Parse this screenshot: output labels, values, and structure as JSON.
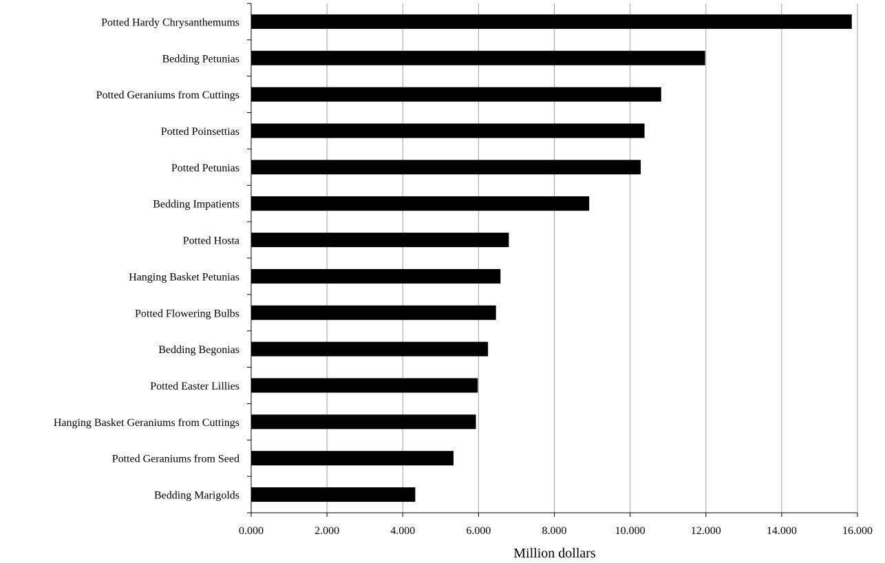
{
  "chart_data": {
    "type": "bar",
    "orientation": "horizontal",
    "categories": [
      "Potted Hardy Chrysanthemums",
      "Bedding Petunias",
      "Potted Geraniums from Cuttings",
      "Potted Poinsettias",
      "Potted Petunias",
      "Bedding Impatients",
      "Potted Hosta",
      "Hanging Basket Petunias",
      "Potted Flowering Bulbs",
      "Bedding Begonias",
      "Potted Easter Lillies",
      "Hanging Basket Geraniums from Cuttings",
      "Potted Geraniums from Seed",
      "Bedding Marigolds"
    ],
    "values": [
      15.85,
      11.98,
      10.82,
      10.38,
      10.28,
      8.92,
      6.8,
      6.58,
      6.46,
      6.25,
      5.98,
      5.93,
      5.34,
      4.33
    ],
    "xlabel": "Million dollars",
    "ylabel": "",
    "xlim": [
      0,
      16
    ],
    "xticks": [
      "0.000",
      "2.000",
      "4.000",
      "6.000",
      "8.000",
      "10.000",
      "12.000",
      "14.000",
      "16.000"
    ],
    "grid": "vertical",
    "bar_color": "#000000",
    "grid_color": "#a0a0a0"
  }
}
